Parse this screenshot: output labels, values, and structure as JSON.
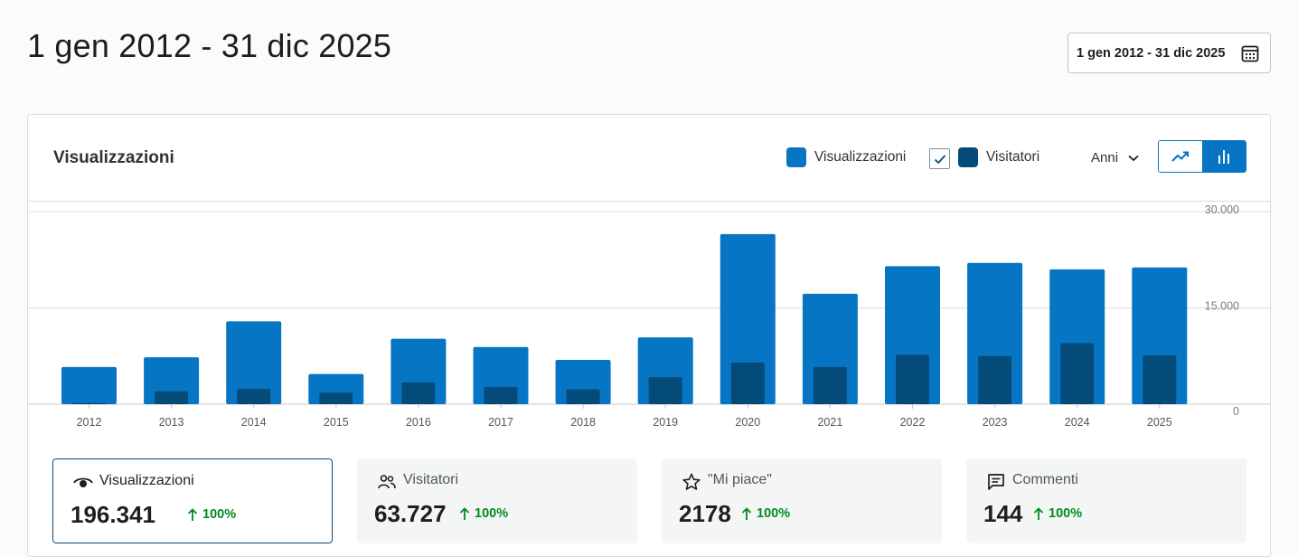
{
  "header": {
    "title": "1 gen 2012 - 31 dic 2025",
    "date_range_button": "1 gen 2012 - 31 dic 2025"
  },
  "card": {
    "title": "Visualizzazioni",
    "legend": {
      "views_label": "Visualizzazioni",
      "visitors_label": "Visitatori"
    },
    "period_selector": "Anni",
    "colors": {
      "views": "#0675c4",
      "visitors": "#044b7a",
      "active_toggle": "#0675c4",
      "trend": "#008a20"
    }
  },
  "chart_data": {
    "type": "bar",
    "categories": [
      "2012",
      "2013",
      "2014",
      "2015",
      "2016",
      "2017",
      "2018",
      "2019",
      "2020",
      "2021",
      "2022",
      "2023",
      "2024",
      "2025"
    ],
    "series": [
      {
        "name": "Visualizzazioni",
        "values": [
          5800,
          7300,
          12900,
          4700,
          10200,
          8900,
          6900,
          10400,
          26500,
          17200,
          21500,
          22000,
          21000,
          21300
        ]
      },
      {
        "name": "Visitatori",
        "values": [
          200,
          2000,
          2400,
          1800,
          3400,
          2700,
          2300,
          4200,
          6500,
          5800,
          7700,
          7500,
          9500,
          7600
        ]
      }
    ],
    "ylim": [
      0,
      30000
    ],
    "yticks": [
      0,
      15000,
      30000
    ],
    "ytick_labels": [
      "0",
      "15.000",
      "30.000"
    ],
    "grid": true,
    "xlabel": "",
    "ylabel": ""
  },
  "stats": [
    {
      "label": "Visualizzazioni",
      "value": "196.341",
      "trend": "100%",
      "icon": "eye-icon",
      "active": true
    },
    {
      "label": "Visitatori",
      "value": "63.727",
      "trend": "100%",
      "icon": "people-icon",
      "active": false
    },
    {
      "label": "\"Mi piace\"",
      "value": "2178",
      "trend": "100%",
      "icon": "star-icon",
      "active": false
    },
    {
      "label": "Commenti",
      "value": "144",
      "trend": "100%",
      "icon": "comment-icon",
      "active": false
    }
  ]
}
